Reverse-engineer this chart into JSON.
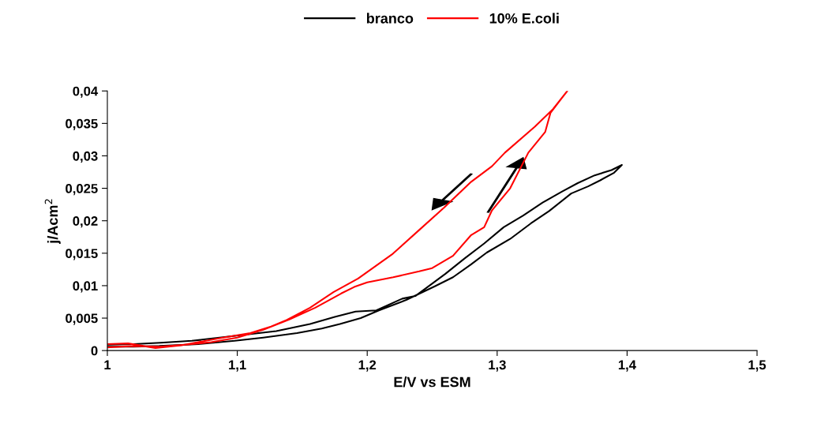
{
  "chart_data": {
    "type": "line",
    "xlabel": "E/V vs ESM",
    "ylabel": "j/Acm$^{2}$",
    "xlim": [
      1,
      1.5
    ],
    "ylim": [
      0,
      0.04
    ],
    "xticks": [
      {
        "value": 1,
        "label": "1"
      },
      {
        "value": 1.1,
        "label": "1,1"
      },
      {
        "value": 1.2,
        "label": "1,2"
      },
      {
        "value": 1.3,
        "label": "1,3"
      },
      {
        "value": 1.4,
        "label": "1,4"
      },
      {
        "value": 1.5,
        "label": "1,5"
      }
    ],
    "yticks": [
      {
        "value": 0,
        "label": "0"
      },
      {
        "value": 0.005,
        "label": "0,005"
      },
      {
        "value": 0.01,
        "label": "0,01"
      },
      {
        "value": 0.015,
        "label": "0,015"
      },
      {
        "value": 0.02,
        "label": "0,02"
      },
      {
        "value": 0.025,
        "label": "0,025"
      },
      {
        "value": 0.03,
        "label": "0,03"
      },
      {
        "value": 0.035,
        "label": "0,035"
      },
      {
        "value": 0.04,
        "label": "0,04"
      }
    ],
    "grid": false,
    "legend": "top",
    "marker": "none",
    "line_style": "solid",
    "series": [
      {
        "name": "branco",
        "color": "#000000",
        "x": [
          1.0,
          1.02,
          1.04,
          1.07,
          1.098,
          1.12,
          1.146,
          1.165,
          1.179,
          1.195,
          1.209,
          1.23,
          1.252,
          1.266,
          1.28,
          1.292,
          1.31,
          1.326,
          1.34,
          1.357,
          1.37,
          1.379,
          1.39,
          1.396,
          1.388,
          1.375,
          1.362,
          1.35,
          1.335,
          1.32,
          1.305,
          1.29,
          1.275,
          1.26,
          1.237,
          1.227,
          1.207,
          1.191,
          1.175,
          1.156,
          1.13,
          1.065,
          1.041,
          1.02,
          1.0
        ],
        "values": [
          0.0006,
          0.0006,
          0.0007,
          0.001,
          0.0015,
          0.002,
          0.0027,
          0.0034,
          0.0041,
          0.005,
          0.0062,
          0.0078,
          0.0099,
          0.0113,
          0.0133,
          0.0151,
          0.0172,
          0.0196,
          0.0215,
          0.0242,
          0.0253,
          0.0262,
          0.0274,
          0.0286,
          0.0278,
          0.027,
          0.0258,
          0.0245,
          0.0228,
          0.0208,
          0.019,
          0.0165,
          0.0142,
          0.0118,
          0.0084,
          0.008,
          0.0062,
          0.006,
          0.0052,
          0.0041,
          0.003,
          0.0015,
          0.0012,
          0.001,
          0.0009
        ]
      },
      {
        "name": "10% E.coli",
        "color": "#ff0000",
        "x": [
          1.0,
          1.02,
          1.04,
          1.06,
          1.08,
          1.1,
          1.12,
          1.14,
          1.16,
          1.18,
          1.19,
          1.2,
          1.22,
          1.24,
          1.25,
          1.266,
          1.28,
          1.29,
          1.296,
          1.31,
          1.324,
          1.337,
          1.341,
          1.354,
          1.343,
          1.329,
          1.306,
          1.296,
          1.28,
          1.259,
          1.239,
          1.219,
          1.193,
          1.174,
          1.156,
          1.138,
          1.126,
          1.11,
          1.089,
          1.057,
          1.037,
          1.016,
          1.0
        ],
        "values": [
          0.0005,
          0.0007,
          0.0006,
          0.0009,
          0.0013,
          0.002,
          0.0032,
          0.0048,
          0.0066,
          0.0088,
          0.0098,
          0.0105,
          0.0113,
          0.0122,
          0.0127,
          0.0146,
          0.0178,
          0.019,
          0.0216,
          0.025,
          0.0305,
          0.0337,
          0.0366,
          0.04,
          0.0372,
          0.0345,
          0.0305,
          0.0284,
          0.026,
          0.022,
          0.0184,
          0.0148,
          0.0111,
          0.009,
          0.0066,
          0.0047,
          0.0037,
          0.0027,
          0.002,
          0.0008,
          0.0004,
          0.0011,
          0.001
        ]
      }
    ]
  }
}
